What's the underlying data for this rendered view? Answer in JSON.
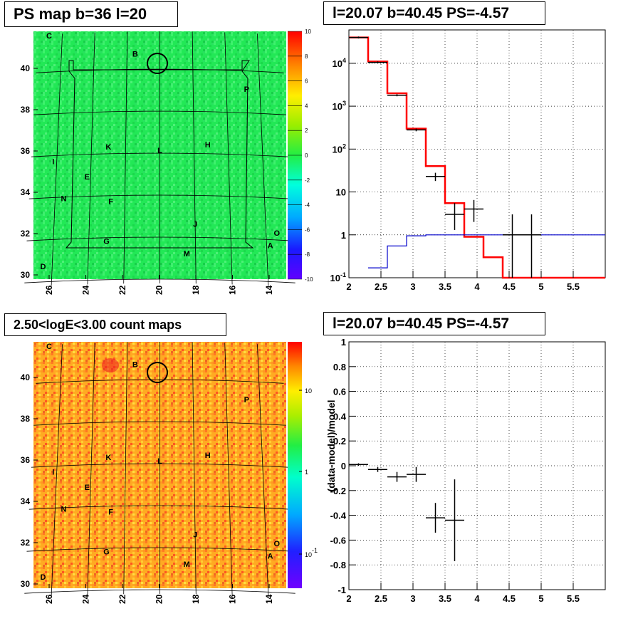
{
  "panels": {
    "tl_title": "PS map b=36 l=20",
    "tr_title": "l=20.07 b=40.45 PS=-4.57",
    "bl_title": "2.50<logE<3.00 count maps",
    "br_title": "l=20.07 b=40.45 PS=-4.57"
  },
  "map_labels": [
    {
      "text": "B",
      "l": 21.5,
      "b": 40.6
    },
    {
      "text": "P",
      "l": 14.8,
      "b": 39.0
    },
    {
      "text": "H",
      "l": 17.2,
      "b": 36.3
    },
    {
      "text": "K",
      "l": 23.0,
      "b": 36.2
    },
    {
      "text": "L",
      "l": 20.0,
      "b": 36.0
    },
    {
      "text": "I",
      "l": 26.2,
      "b": 35.6
    },
    {
      "text": "E",
      "l": 24.2,
      "b": 34.8
    },
    {
      "text": "N",
      "l": 25.5,
      "b": 33.8
    },
    {
      "text": "F",
      "l": 22.8,
      "b": 33.6
    },
    {
      "text": "J",
      "l": 18.0,
      "b": 32.5
    },
    {
      "text": "O",
      "l": 13.4,
      "b": 32.2
    },
    {
      "text": "G",
      "l": 23.0,
      "b": 31.7
    },
    {
      "text": "A",
      "l": 13.8,
      "b": 31.6
    },
    {
      "text": "M",
      "l": 18.5,
      "b": 31.1
    },
    {
      "text": "D",
      "l": 26.5,
      "b": 30.6
    },
    {
      "text": "C",
      "l": 26.8,
      "b": 41.6
    }
  ],
  "map_x_ticks": [
    "26",
    "24",
    "22",
    "20",
    "18",
    "16",
    "14"
  ],
  "map_y_ticks": [
    "30",
    "32",
    "34",
    "36",
    "38",
    "40"
  ],
  "colorbar_top": [
    "10",
    "8",
    "6",
    "4",
    "2",
    "0",
    "-2",
    "-4",
    "-6",
    "-8",
    "-10"
  ],
  "colorbar_bottom": [
    "10",
    "1",
    "10^-1"
  ],
  "chart_data": [
    {
      "type": "line",
      "title": "l=20.07 b=40.45 PS=-4.57",
      "xlim": [
        2,
        6
      ],
      "ylim": [
        0.1,
        60000
      ],
      "log_y": true,
      "x_ticks": [
        "2",
        "2.5",
        "3",
        "3.5",
        "4",
        "4.5",
        "5",
        "5.5"
      ],
      "y_ticks": [
        "10^-1",
        "1",
        "10",
        "10^2",
        "10^3",
        "10^4"
      ],
      "grid": true,
      "series": [
        {
          "color": "#ff0000",
          "style": "step",
          "edges": [
            2.0,
            2.3,
            2.6,
            2.9,
            3.2,
            3.5,
            3.8,
            4.1,
            4.4,
            6.0
          ],
          "values": [
            40000,
            11000,
            2000,
            300,
            40,
            5.5,
            0.9,
            0.3,
            0.1
          ]
        },
        {
          "color": "#0000cc",
          "style": "step",
          "edges": [
            2.3,
            2.6,
            2.9,
            3.2,
            6.0
          ],
          "values": [
            0.17,
            0.55,
            0.95,
            1.0
          ]
        },
        {
          "color": "#000000",
          "style": "errorbar",
          "points": [
            {
              "x": 2.15,
              "y": 40000,
              "xerr": 0.15,
              "ylo": 38000,
              "yhi": 42000
            },
            {
              "x": 2.45,
              "y": 10500,
              "xerr": 0.15,
              "ylo": 10000,
              "yhi": 11000
            },
            {
              "x": 2.75,
              "y": 1800,
              "xerr": 0.15,
              "ylo": 1700,
              "yhi": 1900
            },
            {
              "x": 3.05,
              "y": 280,
              "xerr": 0.15,
              "ylo": 260,
              "yhi": 300
            },
            {
              "x": 3.35,
              "y": 23,
              "xerr": 0.15,
              "ylo": 18,
              "yhi": 28
            },
            {
              "x": 3.65,
              "y": 3,
              "xerr": 0.15,
              "ylo": 1.3,
              "yhi": 5.5
            },
            {
              "x": 3.95,
              "y": 4,
              "xerr": 0.15,
              "ylo": 2,
              "yhi": 6.5
            },
            {
              "x": 4.55,
              "y": 1,
              "xerr": 0.15,
              "ylo": 0.1,
              "yhi": 3
            },
            {
              "x": 4.85,
              "y": 1,
              "xerr": 0.15,
              "ylo": 0.1,
              "yhi": 3
            }
          ]
        }
      ]
    },
    {
      "type": "scatter",
      "title": "l=20.07 b=40.45 PS=-4.57",
      "ylabel": "(data-model)/model",
      "xlim": [
        2,
        6
      ],
      "ylim": [
        -1,
        1
      ],
      "x_ticks": [
        "2",
        "2.5",
        "3",
        "3.5",
        "4",
        "4.5",
        "5",
        "5.5"
      ],
      "y_ticks": [
        "-1",
        "-0.8",
        "-0.6",
        "-0.4",
        "-0.2",
        "0",
        "0.2",
        "0.4",
        "0.6",
        "0.8",
        "1"
      ],
      "grid": true,
      "points": [
        {
          "x": 2.15,
          "y": 0.01,
          "xerr": 0.15,
          "yerr": 0.01
        },
        {
          "x": 2.45,
          "y": -0.03,
          "xerr": 0.15,
          "yerr": 0.02
        },
        {
          "x": 2.75,
          "y": -0.09,
          "xerr": 0.15,
          "yerr": 0.04
        },
        {
          "x": 3.05,
          "y": -0.07,
          "xerr": 0.15,
          "yerr": 0.06
        },
        {
          "x": 3.35,
          "y": -0.42,
          "xerr": 0.15,
          "yerr": 0.12
        },
        {
          "x": 3.65,
          "y": -0.44,
          "xerr": 0.15,
          "yerr": 0.33
        }
      ]
    }
  ]
}
